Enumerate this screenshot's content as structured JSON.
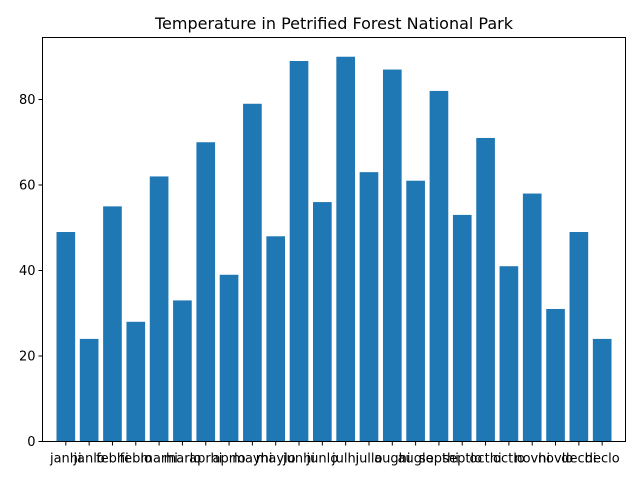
{
  "chart_data": {
    "type": "bar",
    "title": "Temperature in Petrified Forest National Park",
    "xlabel": "",
    "ylabel": "",
    "categories": [
      "janhi",
      "janlo",
      "febhi",
      "feblo",
      "marhi",
      "marlo",
      "aprhi",
      "aprlo",
      "mayhi",
      "maylo",
      "junhi",
      "junlo",
      "julhi",
      "jullo",
      "aughi",
      "auglo",
      "septhi",
      "septlo",
      "octhi",
      "octlo",
      "novhi",
      "novlo",
      "dechi",
      "declo"
    ],
    "values": [
      49,
      24,
      55,
      28,
      62,
      33,
      70,
      39,
      79,
      48,
      89,
      56,
      90,
      63,
      87,
      61,
      82,
      53,
      71,
      41,
      58,
      31,
      49,
      24
    ],
    "ylim": [
      0,
      94.5
    ],
    "yticks": [
      0,
      20,
      40,
      60,
      80
    ],
    "bar_color": "#1f77b4",
    "grid": false,
    "legend": "none"
  }
}
